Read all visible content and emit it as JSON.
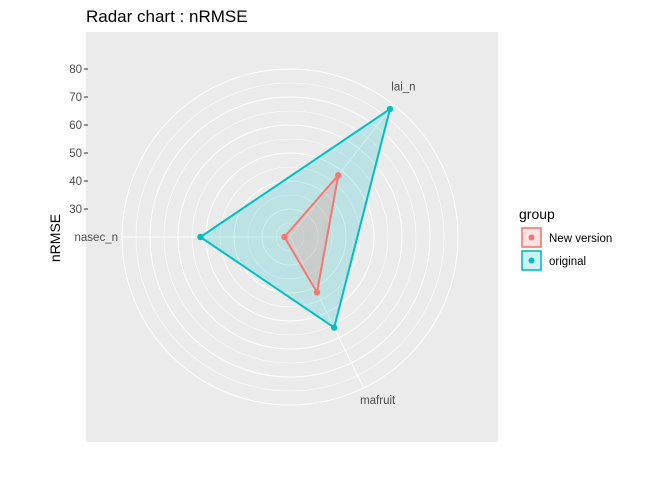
{
  "chart_data": {
    "type": "radar",
    "title": "Radar chart : nRMSE",
    "ylabel": "nRMSE",
    "axes": [
      "lai_n",
      "mafruit",
      "nasec_n"
    ],
    "rlim": [
      20,
      80
    ],
    "radial_ticks": [
      30,
      40,
      50,
      60,
      70,
      80
    ],
    "grid": true,
    "legend": {
      "title": "group",
      "position": "right"
    },
    "series": [
      {
        "name": "New version",
        "color": "#f8766d",
        "values": [
          48,
          42,
          22
        ]
      },
      {
        "name": "original",
        "color": "#00bfc4",
        "values": [
          78,
          56,
          52
        ]
      }
    ]
  }
}
